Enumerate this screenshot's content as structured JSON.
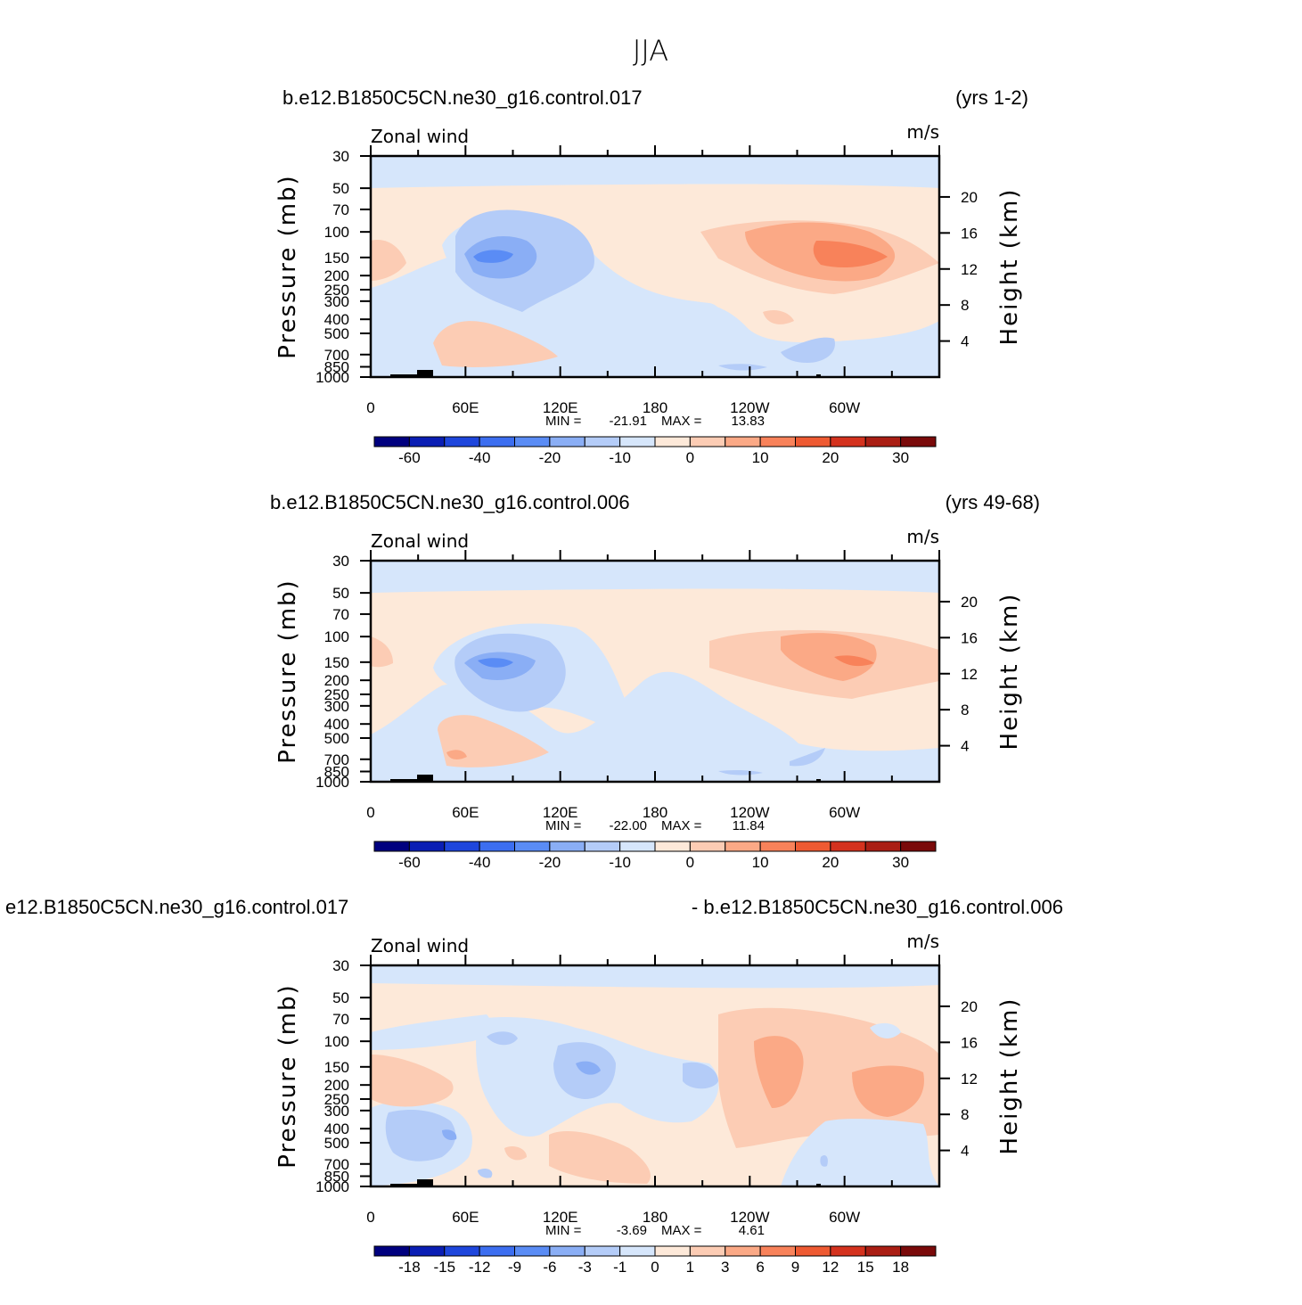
{
  "figure": {
    "title": "JJA"
  },
  "panels": [
    {
      "left_title": "b.e12.B1850C5CN.ne30_g16.control.017",
      "right_title": "(yrs 1-2)",
      "variable": "Zonal wind",
      "units": "m/s",
      "ylabel": "Pressure (mb)",
      "ylabel_right": "Height (km)",
      "stats": {
        "min_label": "MIN =",
        "min": "-21.91",
        "max_label": "MAX =",
        "max": "13.83"
      },
      "colorbar": {
        "labels": [
          "-60",
          "-40",
          "-20",
          "-10",
          "0",
          "10",
          "20",
          "30"
        ]
      }
    },
    {
      "left_title": "b.e12.B1850C5CN.ne30_g16.control.006",
      "right_title": "(yrs 49-68)",
      "variable": "Zonal wind",
      "units": "m/s",
      "ylabel": "Pressure (mb)",
      "ylabel_right": "Height (km)",
      "stats": {
        "min_label": "MIN =",
        "min": "-22.00",
        "max_label": "MAX =",
        "max": "11.84"
      },
      "colorbar": {
        "labels": [
          "-60",
          "-40",
          "-20",
          "-10",
          "0",
          "10",
          "20",
          "30"
        ]
      }
    },
    {
      "left_title": "e12.B1850C5CN.ne30_g16.control.017",
      "right_title": "- b.e12.B1850C5CN.ne30_g16.control.006",
      "variable": "Zonal wind",
      "units": "m/s",
      "ylabel": "Pressure (mb)",
      "ylabel_right": "Height (km)",
      "stats": {
        "min_label": "MIN =",
        "min": "-3.69",
        "max_label": "MAX =",
        "max": "4.61"
      },
      "colorbar": {
        "labels": [
          "-18",
          "-15",
          "-12",
          "-9",
          "-6",
          "-3",
          "-1",
          "0",
          "1",
          "3",
          "6",
          "9",
          "12",
          "15",
          "18"
        ]
      }
    }
  ],
  "chart_data": [
    {
      "type": "heatmap",
      "title": "b.e12.B1850C5CN.ne30_g16.control.017",
      "xlabel": "",
      "ylabel": "Pressure (mb)",
      "x_tick_labels": [
        "0",
        "60E",
        "120E",
        "180",
        "120W",
        "60W"
      ],
      "y_tick_labels": [
        "30",
        "50",
        "70",
        "100",
        "150",
        "200",
        "250",
        "300",
        "400",
        "500",
        "700",
        "850",
        "1000"
      ],
      "y_right_tick_labels": [
        "20",
        "16",
        "12",
        "8",
        "4"
      ],
      "ylim": [
        1000,
        30
      ],
      "y_scale": "log",
      "min": -21.91,
      "max": 13.83,
      "contour_levels": [
        -60,
        -40,
        -20,
        -10,
        0,
        10,
        20,
        30
      ]
    },
    {
      "type": "heatmap",
      "title": "b.e12.B1850C5CN.ne30_g16.control.006",
      "xlabel": "",
      "ylabel": "Pressure (mb)",
      "x_tick_labels": [
        "0",
        "60E",
        "120E",
        "180",
        "120W",
        "60W"
      ],
      "y_tick_labels": [
        "30",
        "50",
        "70",
        "100",
        "150",
        "200",
        "250",
        "300",
        "400",
        "500",
        "700",
        "850",
        "1000"
      ],
      "y_right_tick_labels": [
        "20",
        "16",
        "12",
        "8",
        "4"
      ],
      "ylim": [
        1000,
        30
      ],
      "y_scale": "log",
      "min": -22.0,
      "max": 11.84,
      "contour_levels": [
        -60,
        -40,
        -20,
        -10,
        0,
        10,
        20,
        30
      ]
    },
    {
      "type": "heatmap",
      "title": "e12.B1850C5CN.ne30_g16.control.017 - b.e12.B1850C5CN.ne30_g16.control.006",
      "xlabel": "",
      "ylabel": "Pressure (mb)",
      "x_tick_labels": [
        "0",
        "60E",
        "120E",
        "180",
        "120W",
        "60W"
      ],
      "y_tick_labels": [
        "30",
        "50",
        "70",
        "100",
        "150",
        "200",
        "250",
        "300",
        "400",
        "500",
        "700",
        "850",
        "1000"
      ],
      "y_right_tick_labels": [
        "20",
        "16",
        "12",
        "8",
        "4"
      ],
      "ylim": [
        1000,
        30
      ],
      "y_scale": "log",
      "min": -3.69,
      "max": 4.61,
      "contour_levels": [
        -18,
        -15,
        -12,
        -9,
        -6,
        -3,
        -1,
        0,
        1,
        3,
        6,
        9,
        12,
        15,
        18
      ]
    }
  ],
  "colors": {
    "c0": "#00007f",
    "c1": "#0a1eb4",
    "c2": "#1e46dc",
    "c3": "#3c6ef0",
    "c4": "#5a8cf5",
    "c5": "#8aaef5",
    "c6": "#b4ccf8",
    "c7": "#d6e6fb",
    "c8": "#fde9d9",
    "c9": "#fcccb4",
    "c10": "#fba986",
    "c11": "#f8825a",
    "c12": "#ee5a32",
    "c13": "#d4321e",
    "c14": "#aa1e14",
    "c15": "#7a0a0a"
  }
}
